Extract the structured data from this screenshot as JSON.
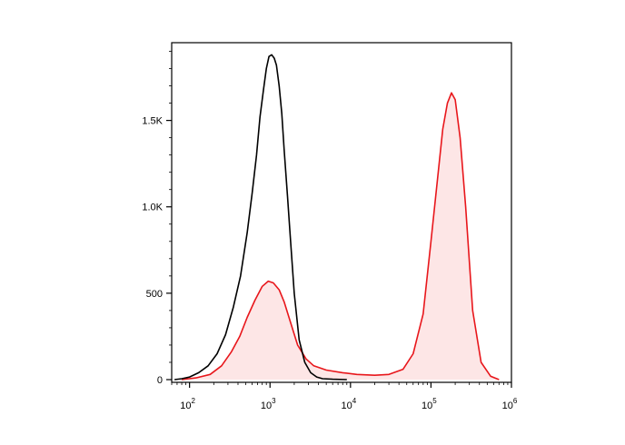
{
  "chart_data": {
    "type": "area",
    "title": "",
    "xlabel": "",
    "ylabel": "",
    "x_scale": "log",
    "xlim": [
      60,
      1000000
    ],
    "ylim": [
      0,
      1950
    ],
    "x_ticks": [
      {
        "value": 100,
        "base": "10",
        "exp": "2"
      },
      {
        "value": 1000,
        "base": "10",
        "exp": "3"
      },
      {
        "value": 10000,
        "base": "10",
        "exp": "4"
      },
      {
        "value": 100000,
        "base": "10",
        "exp": "5"
      },
      {
        "value": 1000000,
        "base": "10",
        "exp": "6"
      }
    ],
    "y_ticks": [
      {
        "value": 0,
        "label": "0"
      },
      {
        "value": 500,
        "label": "500"
      },
      {
        "value": 1000,
        "label": "1.0K"
      },
      {
        "value": 1500,
        "label": "1.5K"
      }
    ],
    "grid": false,
    "legend": "none",
    "series": [
      {
        "color": "#000000",
        "fill": "none",
        "x": [
          65,
          80,
          100,
          130,
          170,
          220,
          280,
          350,
          430,
          520,
          600,
          680,
          750,
          830,
          900,
          970,
          1050,
          1130,
          1200,
          1300,
          1400,
          1500,
          1650,
          1800,
          2000,
          2300,
          2700,
          3200,
          3800,
          4500,
          6000,
          9000
        ],
        "y": [
          0,
          5,
          15,
          40,
          80,
          150,
          260,
          420,
          600,
          850,
          1080,
          1300,
          1520,
          1680,
          1800,
          1870,
          1880,
          1860,
          1820,
          1700,
          1540,
          1330,
          1060,
          800,
          500,
          230,
          100,
          40,
          15,
          5,
          2,
          0
        ]
      },
      {
        "color": "#e8161b",
        "fill": "#fde6e6",
        "x": [
          80,
          120,
          180,
          250,
          330,
          420,
          520,
          650,
          800,
          950,
          1100,
          1300,
          1500,
          1800,
          2200,
          2800,
          3500,
          5000,
          8000,
          12000,
          20000,
          30000,
          45000,
          60000,
          80000,
          100000,
          120000,
          140000,
          160000,
          180000,
          200000,
          230000,
          270000,
          330000,
          420000,
          550000,
          700000
        ],
        "y": [
          0,
          10,
          30,
          80,
          160,
          250,
          360,
          460,
          540,
          570,
          560,
          520,
          450,
          330,
          200,
          120,
          80,
          55,
          40,
          30,
          25,
          30,
          60,
          150,
          380,
          800,
          1150,
          1450,
          1600,
          1660,
          1620,
          1400,
          1000,
          400,
          100,
          20,
          0
        ]
      }
    ]
  }
}
